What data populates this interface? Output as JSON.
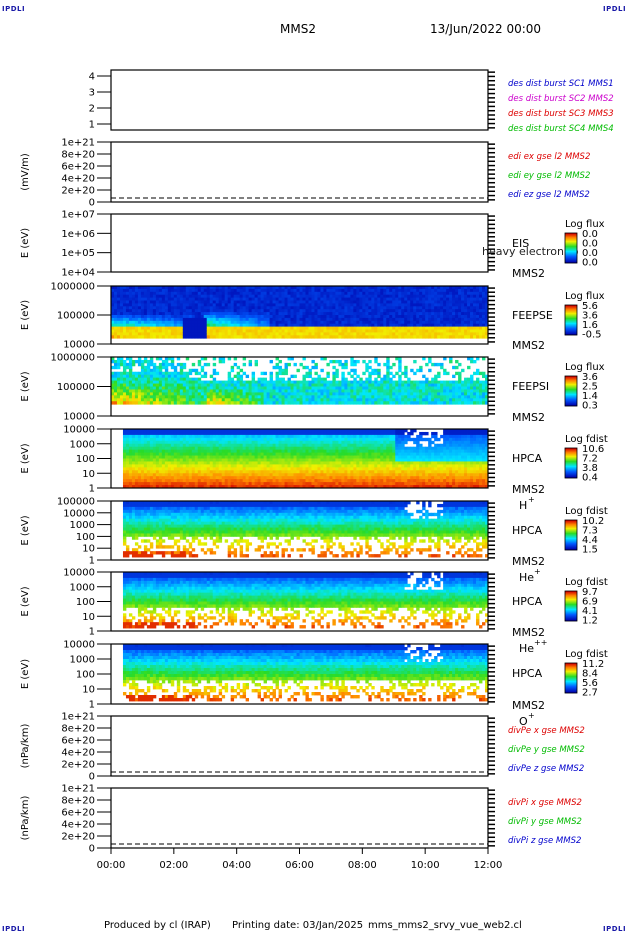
{
  "corner_labels": [
    "IPDLI",
    "IPDLI",
    "IPDLI",
    "IPDLI"
  ],
  "header": {
    "spacecraft": "MMS2",
    "datetime": "13/Jun/2022 00:00"
  },
  "footer": {
    "producer": "Produced by cl (IRAP)",
    "print_date": "Printing date: 03/Jan/2025",
    "filename": "mms_mms2_srvy_vue_web2.cl"
  },
  "colors": {
    "red": "#dd0000",
    "green": "#00bb00",
    "blue": "#0000cc",
    "magenta": "#cc00cc"
  },
  "chart_data": [
    {
      "id": "burst",
      "type": "line",
      "ylabel": "",
      "yticks": [
        "4",
        "3",
        "2",
        "1"
      ],
      "legend": [
        {
          "text": "des dist burst SC1 MMS1",
          "color": "#0000cc"
        },
        {
          "text": "des dist burst SC2 MMS2",
          "color": "#cc00cc"
        },
        {
          "text": "des dist burst SC3 MMS3",
          "color": "#dd0000"
        },
        {
          "text": "des dist burst SC4 MMS4",
          "color": "#00bb00"
        }
      ]
    },
    {
      "id": "edi",
      "type": "line",
      "ylabel": "(mV/m)",
      "yticks": [
        "1e+21",
        "8e+20",
        "6e+20",
        "4e+20",
        "2e+20",
        "0"
      ],
      "zero_line": true,
      "legend": [
        {
          "text": "edi ex gse l2 MMS2",
          "color": "#dd0000"
        },
        {
          "text": "edi ey gse l2 MMS2",
          "color": "#00bb00"
        },
        {
          "text": "edi ez gse l2 MMS2",
          "color": "#0000cc"
        }
      ]
    },
    {
      "id": "eis",
      "type": "heatmap",
      "ylabel": "E (eV)",
      "yticks": [
        "1e+07",
        "1e+06",
        "1e+05",
        "1e+04"
      ],
      "labels": [
        "EIS",
        "MMS2"
      ],
      "overlay": "heavy electron to",
      "colorbar": {
        "title": "Log flux",
        "ticks": [
          "0.0",
          "0.0",
          "0.0",
          "0.0"
        ]
      },
      "data_present": false
    },
    {
      "id": "feepse",
      "type": "heatmap",
      "ylabel": "E (eV)",
      "yticks": [
        "1000000",
        "100000",
        "10000"
      ],
      "labels": [
        "FEEPSE",
        "MMS2"
      ],
      "colorbar": {
        "title": "Log flux",
        "ticks": [
          "5.6",
          "3.6",
          "1.6",
          "-0.5"
        ]
      },
      "data_present": true
    },
    {
      "id": "feepsi",
      "type": "heatmap",
      "ylabel": "E (eV)",
      "yticks": [
        "1000000",
        "100000",
        "10000"
      ],
      "labels": [
        "FEEPSI",
        "MMS2"
      ],
      "colorbar": {
        "title": "Log flux",
        "ticks": [
          "3.6",
          "2.5",
          "1.4",
          "0.3"
        ]
      },
      "data_present": true
    },
    {
      "id": "hpca_h",
      "type": "heatmap",
      "ylabel": "E (eV)",
      "yticks": [
        "10000",
        "1000",
        "100",
        "10",
        "1"
      ],
      "labels": [
        "HPCA",
        "MMS2"
      ],
      "species": "H",
      "charge": "+",
      "colorbar": {
        "title": "Log fdist",
        "ticks": [
          "10.6",
          "7.2",
          "3.8",
          "0.4"
        ]
      },
      "data_present": true
    },
    {
      "id": "hpca_he",
      "type": "heatmap",
      "ylabel": "E (eV)",
      "yticks": [
        "100000",
        "10000",
        "1000",
        "100",
        "10",
        "1"
      ],
      "labels": [
        "HPCA",
        "MMS2"
      ],
      "species": "He",
      "charge": "+",
      "colorbar": {
        "title": "Log fdist",
        "ticks": [
          "10.2",
          "7.3",
          "4.4",
          "1.5"
        ]
      },
      "data_present": true
    },
    {
      "id": "hpca_hepp",
      "type": "heatmap",
      "ylabel": "E (eV)",
      "yticks": [
        "10000",
        "1000",
        "100",
        "10",
        "1"
      ],
      "labels": [
        "HPCA",
        "MMS2"
      ],
      "species": "He",
      "charge": "++",
      "colorbar": {
        "title": "Log fdist",
        "ticks": [
          "9.7",
          "6.9",
          "4.1",
          "1.2"
        ]
      },
      "data_present": true
    },
    {
      "id": "hpca_o",
      "type": "heatmap",
      "ylabel": "E (eV)",
      "yticks": [
        "10000",
        "1000",
        "100",
        "10",
        "1"
      ],
      "labels": [
        "HPCA",
        "MMS2"
      ],
      "species": "O",
      "charge": "+",
      "colorbar": {
        "title": "Log fdist",
        "ticks": [
          "11.2",
          "8.4",
          "5.6",
          "2.7"
        ]
      },
      "data_present": true
    },
    {
      "id": "divpe",
      "type": "line",
      "ylabel": "(nPa/km)",
      "yticks": [
        "1e+21",
        "8e+20",
        "6e+20",
        "4e+20",
        "2e+20",
        "0"
      ],
      "zero_line": true,
      "legend": [
        {
          "text": "divPe x gse MMS2",
          "color": "#dd0000"
        },
        {
          "text": "divPe y gse MMS2",
          "color": "#00bb00"
        },
        {
          "text": "divPe z gse MMS2",
          "color": "#0000cc"
        }
      ]
    },
    {
      "id": "divpi",
      "type": "line",
      "ylabel": "(nPa/km)",
      "yticks": [
        "1e+21",
        "8e+20",
        "6e+20",
        "4e+20",
        "2e+20",
        "0"
      ],
      "zero_line": true,
      "legend": [
        {
          "text": "divPi x gse MMS2",
          "color": "#dd0000"
        },
        {
          "text": "divPi y gse MMS2",
          "color": "#00bb00"
        },
        {
          "text": "divPi z gse MMS2",
          "color": "#0000cc"
        }
      ]
    }
  ],
  "time_axis": {
    "ticks": [
      "00:00",
      "02:00",
      "04:00",
      "06:00",
      "08:00",
      "10:00",
      "12:00"
    ]
  }
}
